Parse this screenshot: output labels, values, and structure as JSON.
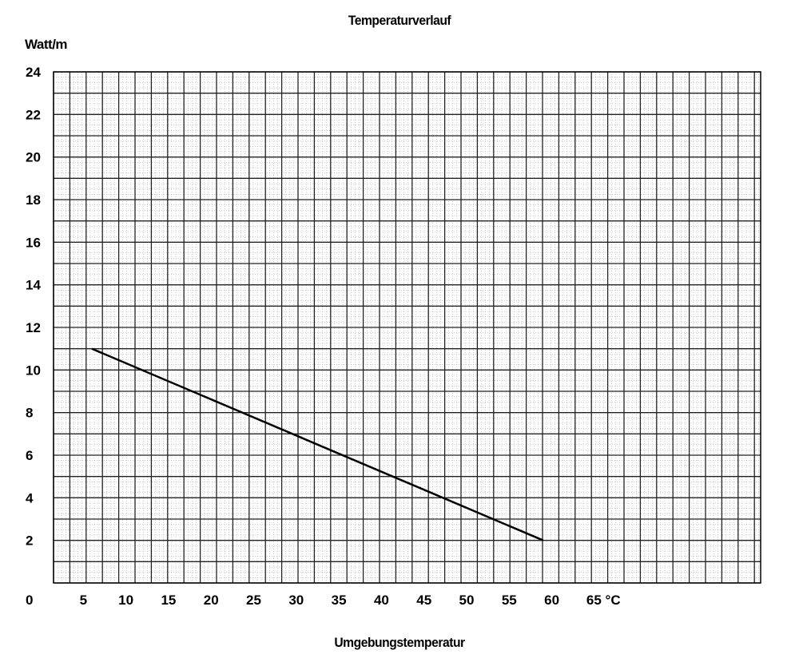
{
  "chart_data": {
    "type": "line",
    "title": "Temperaturverlauf",
    "ylabel": "Watt/m",
    "xlabel": "Umgebungstemperatur",
    "x_unit": "°C",
    "x_ticks": [
      5,
      10,
      15,
      20,
      25,
      30,
      35,
      40,
      45,
      50,
      55,
      60,
      65
    ],
    "y_ticks": [
      0,
      2,
      4,
      6,
      8,
      10,
      12,
      14,
      16,
      18,
      20,
      22,
      24
    ],
    "series": [
      {
        "points": [
          {
            "x": 6,
            "y": 11
          },
          {
            "x": 59,
            "y": 2
          }
        ],
        "color": "#000000"
      }
    ],
    "grid": true
  }
}
